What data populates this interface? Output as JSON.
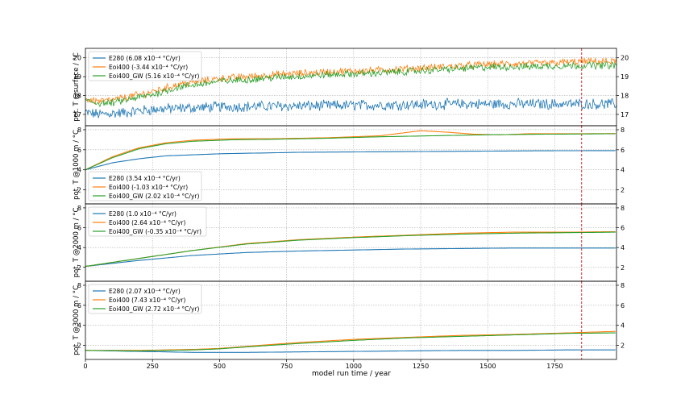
{
  "colors": {
    "E280": "#1f77b4",
    "Eoi400": "#ff7f0e",
    "Eoi400_GW": "#2ca02c",
    "vline": "#d62728",
    "grid": "#b0b0b0"
  },
  "chart_data": [
    {
      "type": "line",
      "ylabel": "pot. T @surface / °C",
      "xlim": [
        0,
        1980
      ],
      "ylim": [
        16.4,
        20.5
      ],
      "yticks": [
        17,
        18,
        19,
        20
      ],
      "legend_loc": "top-left",
      "series": [
        {
          "name": "E280 (6.08 x10⁻⁴ °C/yr)",
          "key": "E280",
          "noise": 0.25,
          "x": [
            0,
            50,
            100,
            150,
            200,
            300,
            500,
            800,
            1100,
            1400,
            1700,
            1980
          ],
          "y": [
            17.1,
            17.0,
            17.05,
            17.1,
            17.2,
            17.3,
            17.4,
            17.45,
            17.5,
            17.55,
            17.55,
            17.55
          ]
        },
        {
          "name": "Eoi400 (-3.44 x10⁻⁴ °C/yr)",
          "key": "Eoi400",
          "noise": 0.17,
          "x": [
            0,
            50,
            100,
            150,
            250,
            350,
            500,
            700,
            900,
            1100,
            1300,
            1500,
            1700,
            1850,
            1980
          ],
          "y": [
            17.8,
            17.7,
            17.75,
            17.9,
            18.2,
            18.6,
            18.9,
            19.1,
            19.25,
            19.35,
            19.5,
            19.65,
            19.7,
            19.8,
            19.8
          ]
        },
        {
          "name": "Eoi400_GW (5.16 x10⁻⁴ °C/yr)",
          "key": "Eoi400_GW",
          "noise": 0.17,
          "x": [
            0,
            50,
            100,
            150,
            250,
            350,
            500,
            700,
            900,
            1100,
            1300,
            1500,
            1700,
            1850,
            1980
          ],
          "y": [
            17.7,
            17.6,
            17.6,
            17.75,
            18.05,
            18.45,
            18.75,
            18.95,
            19.1,
            19.2,
            19.35,
            19.5,
            19.55,
            19.6,
            19.6
          ]
        }
      ]
    },
    {
      "type": "line",
      "ylabel": "pot. T @1000 m / °C",
      "xlim": [
        0,
        1980
      ],
      "ylim": [
        0.6,
        8.4
      ],
      "yticks": [
        2,
        4,
        6,
        8
      ],
      "legend_loc": "lower-left",
      "series": [
        {
          "name": "E280 (3.54 x10⁻⁴ °C/yr)",
          "key": "E280",
          "x": [
            0,
            100,
            200,
            300,
            500,
            800,
            1100,
            1400,
            1700,
            1980
          ],
          "y": [
            4.0,
            4.7,
            5.1,
            5.4,
            5.6,
            5.75,
            5.8,
            5.85,
            5.9,
            5.92
          ]
        },
        {
          "name": "Eoi400 (-1.03 x10⁻⁴ °C/yr)",
          "key": "Eoi400",
          "x": [
            0,
            100,
            200,
            300,
            400,
            550,
            700,
            900,
            1100,
            1250,
            1350,
            1450,
            1550,
            1650,
            1800,
            1980
          ],
          "y": [
            4.0,
            5.3,
            6.2,
            6.7,
            6.95,
            7.1,
            7.1,
            7.2,
            7.4,
            7.9,
            7.75,
            7.55,
            7.5,
            7.6,
            7.6,
            7.62
          ]
        },
        {
          "name": "Eoi400_GW (2.02 x10⁻⁴ °C/yr)",
          "key": "Eoi400_GW",
          "x": [
            0,
            100,
            200,
            300,
            400,
            550,
            700,
            900,
            1100,
            1300,
            1500,
            1700,
            1980
          ],
          "y": [
            4.0,
            5.2,
            6.1,
            6.6,
            6.85,
            7.0,
            7.05,
            7.15,
            7.3,
            7.4,
            7.5,
            7.55,
            7.6
          ]
        }
      ]
    },
    {
      "type": "line",
      "ylabel": "pot. T @2000 m / °C",
      "xlim": [
        0,
        1980
      ],
      "ylim": [
        0.6,
        8.4
      ],
      "yticks": [
        2,
        4,
        6,
        8
      ],
      "legend_loc": "top-left",
      "series": [
        {
          "name": "E280 (1.0 x10⁻⁴ °C/yr)",
          "key": "E280",
          "x": [
            0,
            200,
            400,
            600,
            800,
            1000,
            1200,
            1400,
            1600,
            1800,
            1980
          ],
          "y": [
            2.1,
            2.7,
            3.2,
            3.5,
            3.65,
            3.75,
            3.85,
            3.9,
            3.95,
            3.95,
            3.95
          ]
        },
        {
          "name": "Eoi400 (2.64 x10⁻⁴ °C/yr)",
          "key": "Eoi400",
          "x": [
            0,
            200,
            400,
            600,
            800,
            1000,
            1200,
            1400,
            1600,
            1800,
            1980
          ],
          "y": [
            2.1,
            2.9,
            3.7,
            4.4,
            4.8,
            5.05,
            5.25,
            5.45,
            5.55,
            5.55,
            5.6
          ]
        },
        {
          "name": "Eoi400_GW (-0.35 x10⁻⁴ °C/yr)",
          "key": "Eoi400_GW",
          "x": [
            0,
            200,
            400,
            600,
            800,
            1000,
            1200,
            1400,
            1600,
            1800,
            1980
          ],
          "y": [
            2.1,
            2.9,
            3.7,
            4.35,
            4.75,
            5.0,
            5.2,
            5.35,
            5.45,
            5.5,
            5.55
          ]
        }
      ]
    },
    {
      "type": "line",
      "ylabel": "pot. T @3000 m / °C",
      "xlabel": "model run time / year",
      "xlim": [
        0,
        1980
      ],
      "ylim": [
        0.6,
        8.4
      ],
      "yticks": [
        2,
        4,
        6,
        8
      ],
      "xticks": [
        0,
        250,
        500,
        750,
        1000,
        1250,
        1500,
        1750
      ],
      "legend_loc": "top-left",
      "series": [
        {
          "name": "E280 (2.07 x10⁻⁴ °C/yr)",
          "key": "E280",
          "x": [
            0,
            200,
            400,
            600,
            800,
            1000,
            1200,
            1400,
            1600,
            1800,
            1980
          ],
          "y": [
            1.5,
            1.4,
            1.3,
            1.3,
            1.35,
            1.4,
            1.45,
            1.5,
            1.5,
            1.55,
            1.55
          ]
        },
        {
          "name": "Eoi400 (7.43 x10⁻⁴ °C/yr)",
          "key": "Eoi400",
          "x": [
            0,
            200,
            400,
            500,
            600,
            800,
            1000,
            1200,
            1400,
            1500,
            1600,
            1800,
            1980
          ],
          "y": [
            1.5,
            1.5,
            1.6,
            1.7,
            1.9,
            2.3,
            2.6,
            2.8,
            3.0,
            3.05,
            3.1,
            3.25,
            3.4
          ]
        },
        {
          "name": "Eoi400_GW (2.72 x10⁻⁴ °C/yr)",
          "key": "Eoi400_GW",
          "x": [
            0,
            200,
            400,
            500,
            600,
            800,
            1000,
            1200,
            1400,
            1600,
            1800,
            1980
          ],
          "y": [
            1.5,
            1.45,
            1.55,
            1.65,
            1.85,
            2.2,
            2.5,
            2.75,
            2.9,
            3.05,
            3.2,
            3.25
          ]
        }
      ]
    }
  ],
  "vline": {
    "x": 1850
  }
}
